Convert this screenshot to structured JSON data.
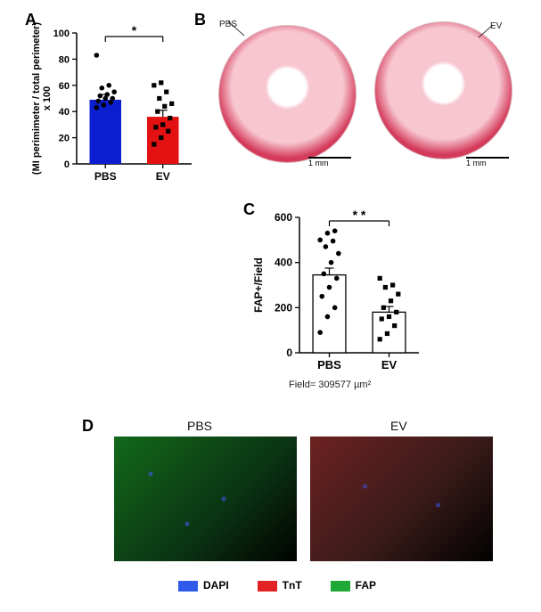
{
  "panels": {
    "A": {
      "label": "A"
    },
    "B": {
      "label": "B"
    },
    "C": {
      "label": "C"
    },
    "D": {
      "label": "D"
    }
  },
  "chartA": {
    "type": "bar",
    "title": "",
    "ylabel": "(MI perimimeter / total perimeter)\nx 100",
    "label_fontsize": 11,
    "categories": [
      "PBS",
      "EV"
    ],
    "bar_values": [
      49,
      36
    ],
    "bar_errors": [
      4,
      5
    ],
    "bar_colors": [
      "#0b1fd1",
      "#e31111"
    ],
    "scatter_marker": [
      "circle",
      "square"
    ],
    "marker_color": "#000000",
    "scatter": {
      "PBS": [
        43,
        45,
        47,
        48,
        50,
        50,
        52,
        53,
        55,
        58,
        60,
        83
      ],
      "EV": [
        15,
        20,
        25,
        28,
        30,
        35,
        40,
        44,
        46,
        50,
        55,
        60,
        62
      ]
    },
    "ylim": [
      0,
      100
    ],
    "ytick_step": 20,
    "axis_color": "#000000",
    "tick_fontsize": 11,
    "significance": {
      "label": "*",
      "between": [
        "PBS",
        "EV"
      ]
    },
    "bar_width": 0.55
  },
  "panelB": {
    "labels": {
      "left": "PBS",
      "right": "EV"
    },
    "scale_bar": "1 mm"
  },
  "chartC": {
    "type": "bar",
    "ylabel": "FAP+/Field",
    "label_fontsize": 12,
    "categories": [
      "PBS",
      "EV"
    ],
    "bar_values": [
      345,
      180
    ],
    "bar_errors": [
      30,
      25
    ],
    "bar_colors": [
      "#ffffff",
      "#ffffff"
    ],
    "bar_border": "#000000",
    "scatter_marker": [
      "circle",
      "square"
    ],
    "marker_color": "#000000",
    "scatter": {
      "PBS": [
        90,
        160,
        200,
        250,
        290,
        330,
        350,
        400,
        440,
        470,
        495,
        500,
        530,
        540
      ],
      "EV": [
        60,
        85,
        120,
        150,
        160,
        180,
        200,
        230,
        260,
        290,
        300,
        330
      ]
    },
    "ylim": [
      0,
      600
    ],
    "ytick_step": 200,
    "axis_color": "#000000",
    "tick_fontsize": 12,
    "significance": {
      "label": "* *",
      "between": [
        "PBS",
        "EV"
      ]
    },
    "field_note": "Field= 309577 µm²",
    "bar_width": 0.55
  },
  "panelD": {
    "titles": {
      "left": "PBS",
      "right": "EV"
    },
    "legend": [
      {
        "name": "DAPI",
        "color": "#2f5bea"
      },
      {
        "name": "TnT",
        "color": "#e22222"
      },
      {
        "name": "FAP",
        "color": "#1fa836"
      }
    ]
  }
}
